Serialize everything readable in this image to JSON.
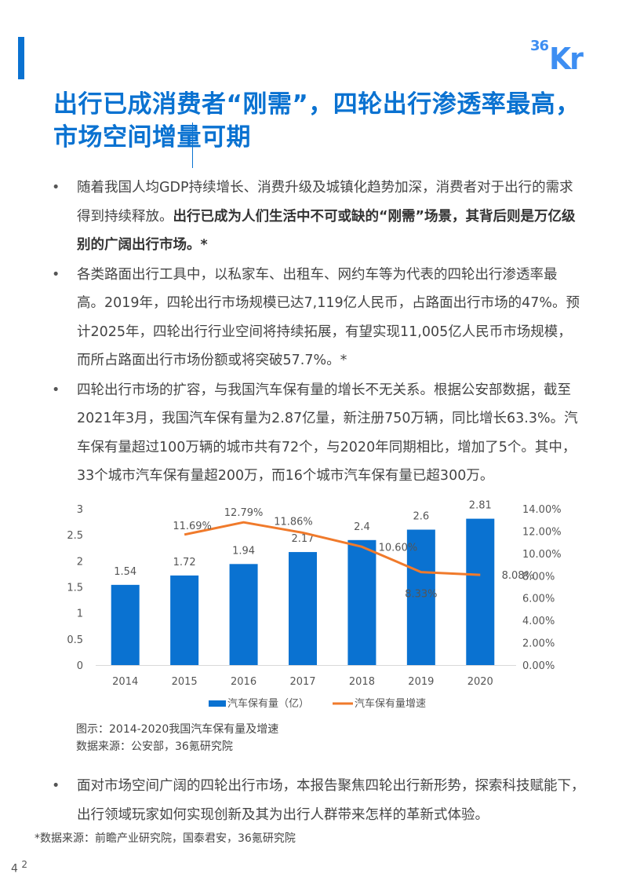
{
  "header": {
    "logo_small": "36",
    "logo_big": "Kr",
    "title": "出行已成消费者“刚需”，四轮出行渗透率最高，市场空间增量可期"
  },
  "bullets": [
    {
      "text_pre": "随着我国人均GDP持续增长、消费升级及城镇化趋势加深，消费者对于出行的需求得到持续释放。",
      "text_bold": "出行已成为人们生活中不可或缺的“刚需”场景，其背后则是万亿级别的广阔出行市场。",
      "text_post": "*"
    },
    {
      "text_pre": "各类路面出行工具中，以私家车、出租车、网约车等为代表的四轮出行渗透率最高。2019年，四轮出行市场规模已达7,119亿人民币，占路面出行市场的47%。预计2025年，四轮出行行业空间将持续拓展，有望实现11,005亿人民币市场规模，而所占路面出行市场份额或将突破57.7%。*",
      "text_bold": "",
      "text_post": ""
    },
    {
      "text_pre": "四轮出行市场的扩容，与我国汽车保有量的增长不无关系。根据公安部数据，截至2021年3月，我国汽车保有量为2.87亿量，新注册750万辆，同比增长63.3%。汽车保有量超过100万辆的城市共有72个，与2020年同期相比，增加了5个。其中，33个城市汽车保有量超200万，而16个城市汽车保有量已超300万。",
      "text_bold": "",
      "text_post": ""
    }
  ],
  "bullet_marker": "•",
  "chart_data": {
    "type": "bar+line",
    "title": "2014-2020我国汽车保有量及增速",
    "categories": [
      "2014",
      "2015",
      "2016",
      "2017",
      "2018",
      "2019",
      "2020"
    ],
    "series": [
      {
        "name": "汽车保有量（亿）",
        "type": "bar",
        "axis": "left",
        "color": "#0a72d1",
        "values": [
          1.54,
          1.72,
          1.94,
          2.17,
          2.4,
          2.6,
          2.81
        ],
        "labels": [
          "1.54",
          "1.72",
          "1.94",
          "2.17",
          "2.4",
          "2.6",
          "2.81"
        ]
      },
      {
        "name": "汽车保有量增速",
        "type": "line",
        "axis": "right",
        "color": "#f07a2b",
        "values": [
          null,
          11.69,
          12.79,
          11.86,
          10.6,
          8.33,
          8.08
        ],
        "labels": [
          "",
          "11.69%",
          "12.79%",
          "11.86%",
          "10.60%",
          "8.33%",
          "8.08%"
        ]
      }
    ],
    "left_axis": {
      "min": 0,
      "max": 3,
      "ticks": [
        "0",
        "0.5",
        "1",
        "1.5",
        "2",
        "2.5",
        "3"
      ]
    },
    "right_axis": {
      "min": 0,
      "max": 14,
      "ticks": [
        "0.00%",
        "2.00%",
        "4.00%",
        "6.00%",
        "8.00%",
        "10.00%",
        "12.00%",
        "14.00%"
      ]
    },
    "grid": false,
    "legend_position": "bottom",
    "legend": [
      "汽车保有量（亿）",
      "汽车保有量增速"
    ]
  },
  "caption": {
    "figure": "图示：2014-2020我国汽车保有量及增速",
    "source": "数据来源：公安部，36氪研究院"
  },
  "bullets_after": [
    {
      "text": "面对市场空间广阔的四轮出行市场，本报告聚焦四轮出行新形势，探索科技赋能下，出行领域玩家如何实现创新及其为出行人群带来怎样的革新式体验。"
    }
  ],
  "footnote": "*数据来源：前瞻产业研究院，国泰君安，36氪研究院",
  "page": {
    "number": "4",
    "sup": "2"
  }
}
